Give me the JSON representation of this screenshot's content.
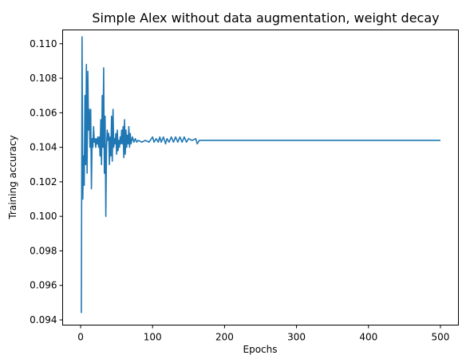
{
  "chart_data": {
    "type": "line",
    "title": "Simple Alex without data augmentation, weight decay",
    "xlabel": "Epochs",
    "ylabel": "Training accuracy",
    "xlim": [
      -25,
      525
    ],
    "ylim": [
      0.0937,
      0.1108
    ],
    "x_ticks": [
      0,
      100,
      200,
      300,
      400,
      500
    ],
    "y_ticks": [
      0.094,
      0.096,
      0.098,
      0.1,
      0.102,
      0.104,
      0.106,
      0.108,
      0.11
    ],
    "grid": false,
    "colors": {
      "line": "#1f77b4"
    },
    "series": [
      {
        "points": [
          [
            1,
            0.0944
          ],
          [
            2,
            0.1104
          ],
          [
            3,
            0.101
          ],
          [
            4,
            0.1035
          ],
          [
            5,
            0.1018
          ],
          [
            6,
            0.107
          ],
          [
            7,
            0.103
          ],
          [
            8,
            0.1088
          ],
          [
            9,
            0.1025
          ],
          [
            10,
            0.1084
          ],
          [
            11,
            0.105
          ],
          [
            12,
            0.1062
          ],
          [
            13,
            0.104
          ],
          [
            14,
            0.1062
          ],
          [
            15,
            0.1016
          ],
          [
            16,
            0.1045
          ],
          [
            17,
            0.104
          ],
          [
            18,
            0.1052
          ],
          [
            19,
            0.1043
          ],
          [
            20,
            0.1045
          ],
          [
            21,
            0.104
          ],
          [
            22,
            0.1045
          ],
          [
            23,
            0.1042
          ],
          [
            24,
            0.1046
          ],
          [
            25,
            0.104
          ],
          [
            26,
            0.1046
          ],
          [
            27,
            0.1035
          ],
          [
            28,
            0.1056
          ],
          [
            29,
            0.103
          ],
          [
            30,
            0.107
          ],
          [
            31,
            0.104
          ],
          [
            32,
            0.1086
          ],
          [
            33,
            0.1025
          ],
          [
            34,
            0.1058
          ],
          [
            35,
            0.1
          ],
          [
            36,
            0.104
          ],
          [
            37,
            0.105
          ],
          [
            38,
            0.1044
          ],
          [
            39,
            0.1048
          ],
          [
            40,
            0.103
          ],
          [
            41,
            0.1046
          ],
          [
            42,
            0.1035
          ],
          [
            43,
            0.1058
          ],
          [
            44,
            0.1032
          ],
          [
            45,
            0.1062
          ],
          [
            46,
            0.104
          ],
          [
            47,
            0.1045
          ],
          [
            48,
            0.1042
          ],
          [
            49,
            0.1048
          ],
          [
            50,
            0.1036
          ],
          [
            51,
            0.105
          ],
          [
            52,
            0.1038
          ],
          [
            53,
            0.1044
          ],
          [
            54,
            0.104
          ],
          [
            55,
            0.1046
          ],
          [
            56,
            0.1042
          ],
          [
            57,
            0.105
          ],
          [
            58,
            0.1042
          ],
          [
            59,
            0.1052
          ],
          [
            60,
            0.1034
          ],
          [
            61,
            0.1056
          ],
          [
            62,
            0.1036
          ],
          [
            63,
            0.105
          ],
          [
            64,
            0.104
          ],
          [
            65,
            0.1047
          ],
          [
            66,
            0.1042
          ],
          [
            67,
            0.1052
          ],
          [
            68,
            0.104
          ],
          [
            69,
            0.1048
          ],
          [
            70,
            0.1042
          ],
          [
            72,
            0.1046
          ],
          [
            74,
            0.1043
          ],
          [
            76,
            0.1045
          ],
          [
            78,
            0.1043
          ],
          [
            80,
            0.1044
          ],
          [
            85,
            0.1043
          ],
          [
            90,
            0.1044
          ],
          [
            95,
            0.1043
          ],
          [
            100,
            0.1046
          ],
          [
            102,
            0.1043
          ],
          [
            105,
            0.1045
          ],
          [
            108,
            0.1043
          ],
          [
            110,
            0.1046
          ],
          [
            112,
            0.1043
          ],
          [
            115,
            0.1046
          ],
          [
            118,
            0.1042
          ],
          [
            120,
            0.1045
          ],
          [
            123,
            0.1043
          ],
          [
            126,
            0.1046
          ],
          [
            129,
            0.1043
          ],
          [
            132,
            0.1046
          ],
          [
            135,
            0.1043
          ],
          [
            138,
            0.1046
          ],
          [
            141,
            0.1043
          ],
          [
            144,
            0.1046
          ],
          [
            147,
            0.1043
          ],
          [
            150,
            0.1045
          ],
          [
            155,
            0.1044
          ],
          [
            160,
            0.1045
          ],
          [
            162,
            0.1042
          ],
          [
            165,
            0.1044
          ],
          [
            200,
            0.1044
          ],
          [
            300,
            0.1044
          ],
          [
            400,
            0.1044
          ],
          [
            500,
            0.1044
          ]
        ]
      }
    ]
  }
}
